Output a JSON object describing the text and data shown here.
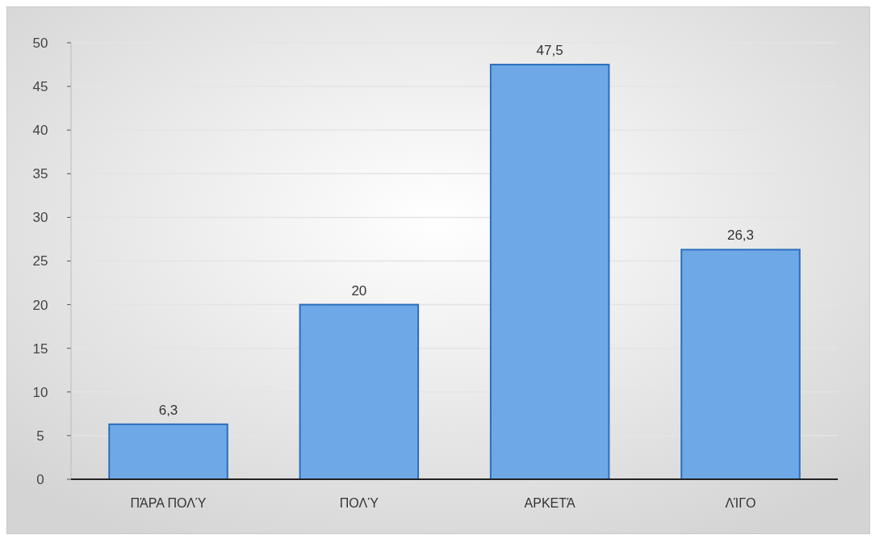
{
  "chart_data": {
    "type": "bar",
    "categories": [
      "ΠΆΡΑ ΠΟΛΎ",
      "ΠΟΛΎ",
      "ΑΡΚΕΤΆ",
      "ΛΊΓΟ"
    ],
    "values": [
      6.3,
      20,
      47.5,
      26.3
    ],
    "value_labels": [
      "6,3",
      "20",
      "47,5",
      "26,3"
    ],
    "color": "#6fa8e6",
    "ylim": [
      0,
      50
    ],
    "yticks": [
      0,
      5,
      10,
      15,
      20,
      25,
      30,
      35,
      40,
      45,
      50
    ],
    "grid": "y"
  }
}
